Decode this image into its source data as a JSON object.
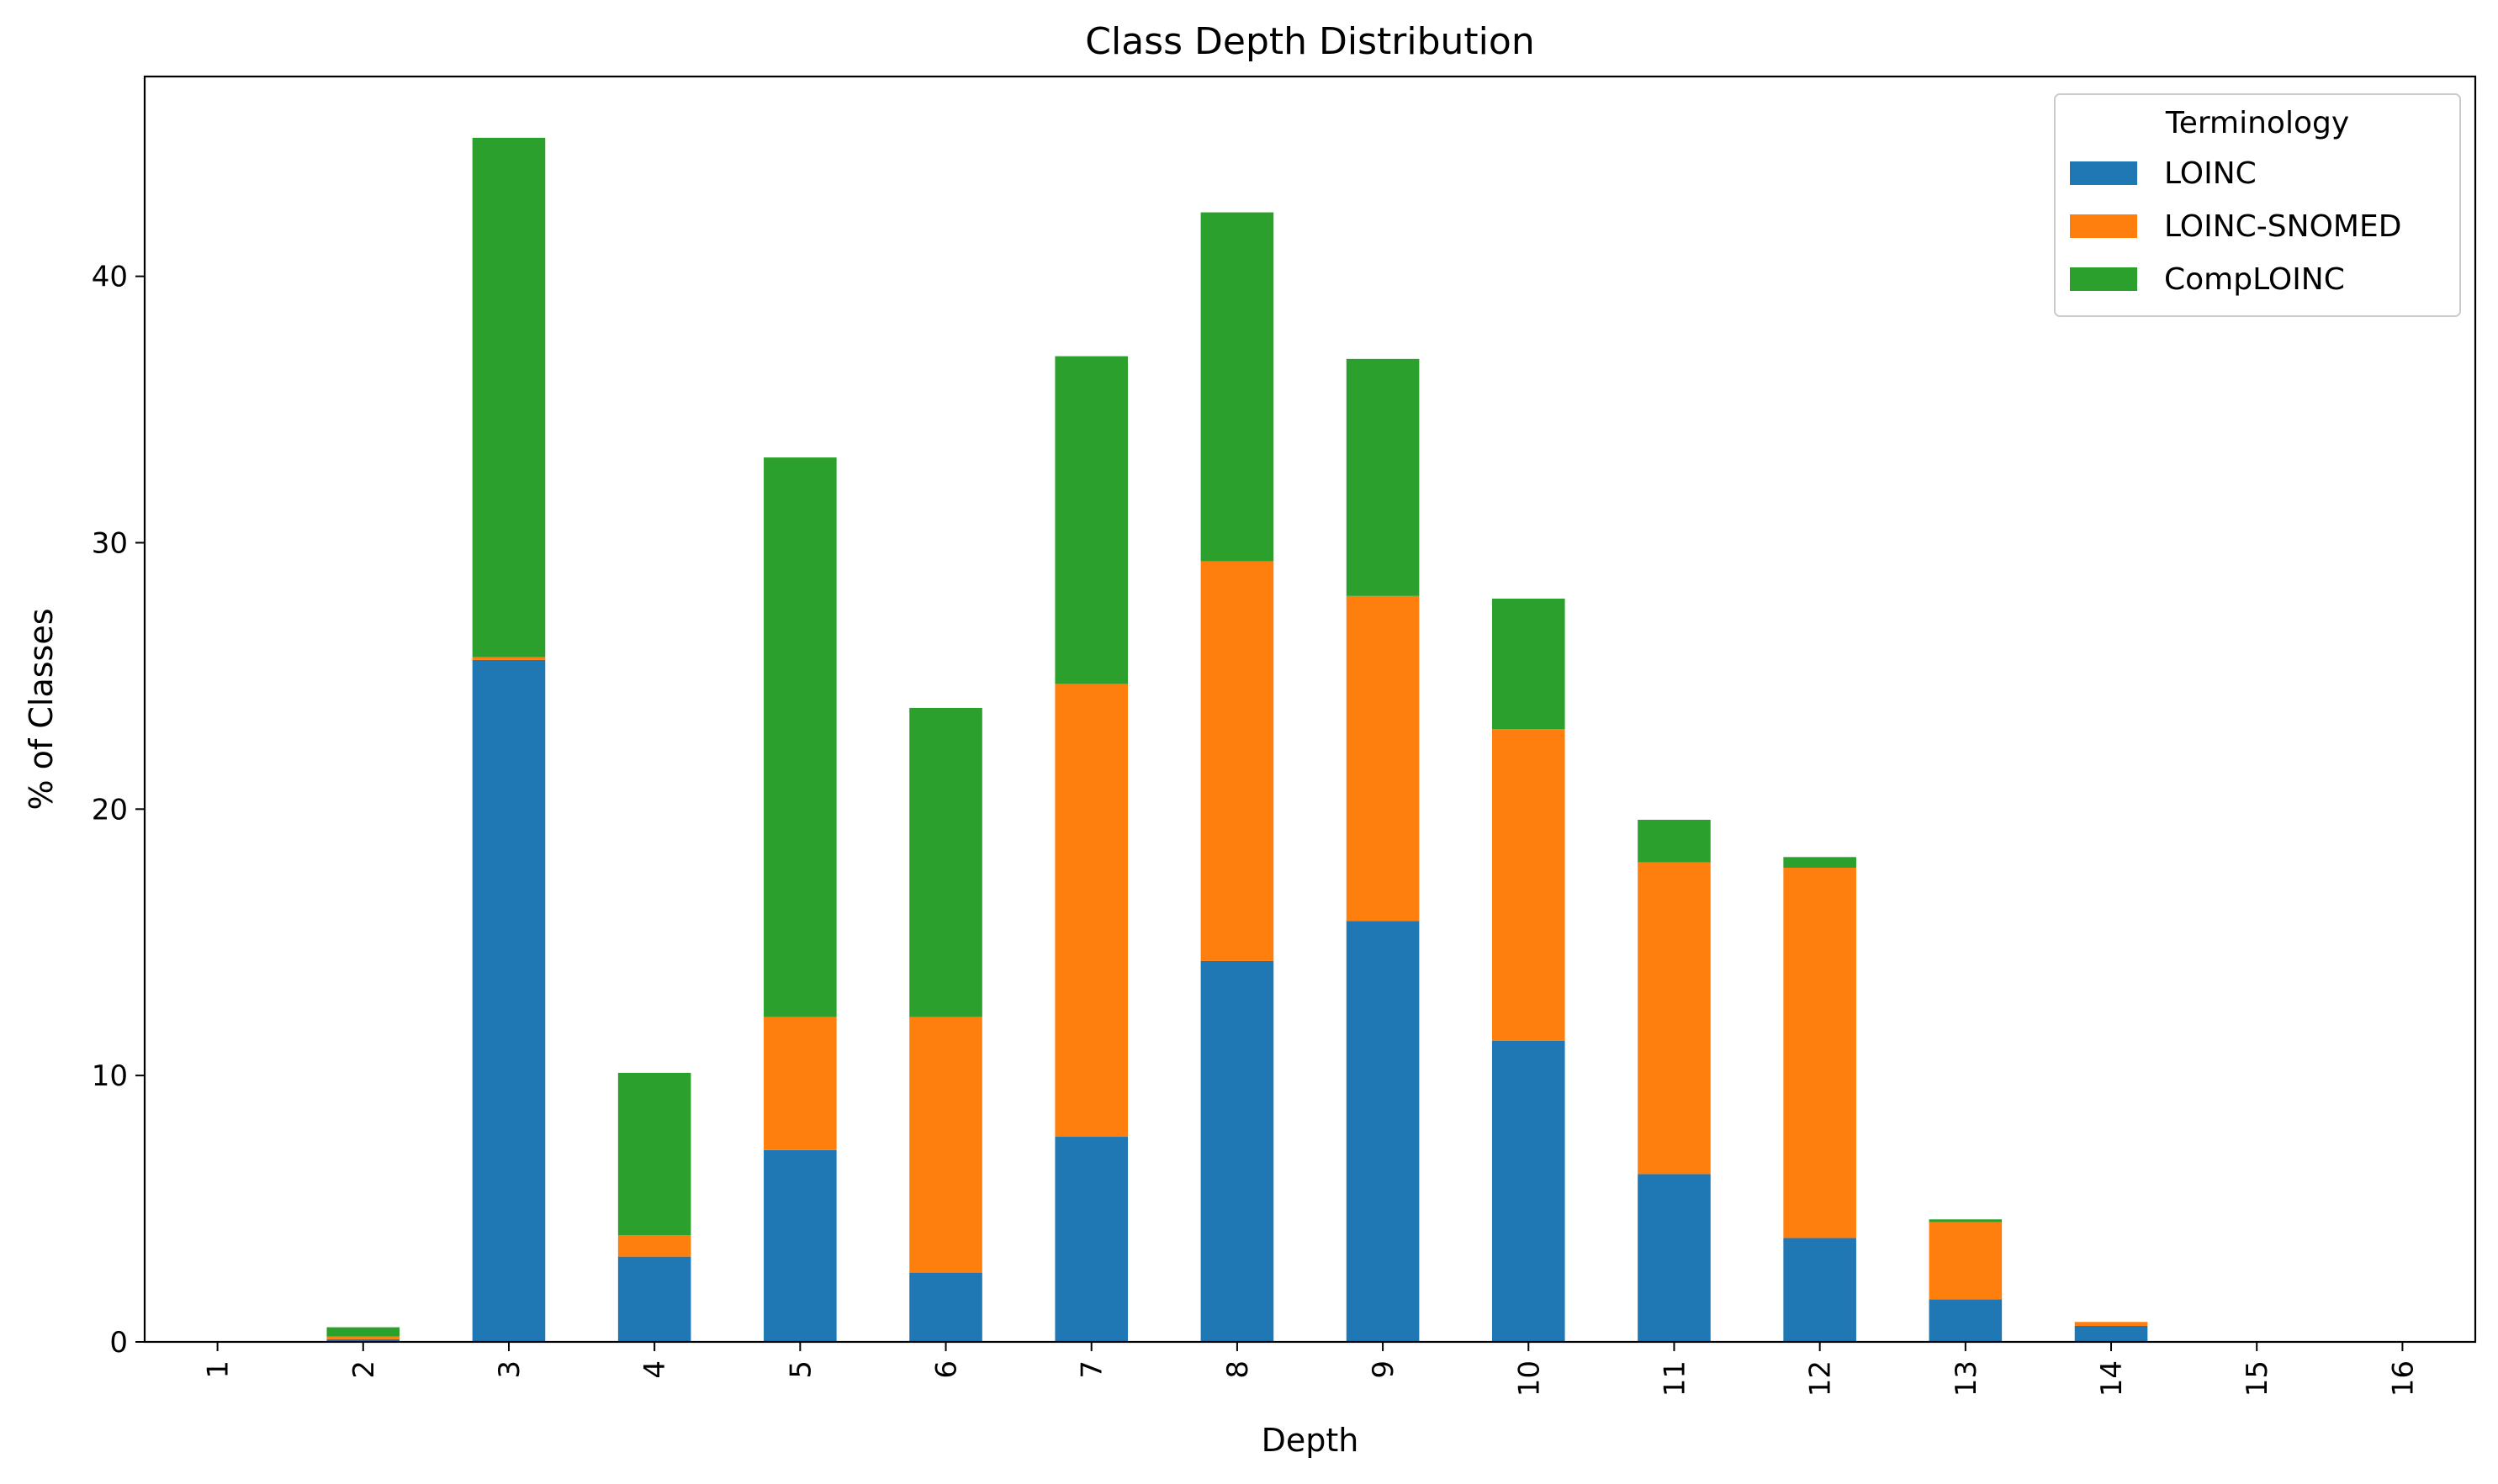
{
  "chart_data": {
    "type": "bar",
    "stacked": true,
    "title": "Class Depth Distribution",
    "xlabel": "Depth",
    "ylabel": "% of Classes",
    "categories": [
      "1",
      "2",
      "3",
      "4",
      "5",
      "6",
      "7",
      "8",
      "9",
      "10",
      "11",
      "12",
      "13",
      "14",
      "15",
      "16"
    ],
    "ylim": [
      0,
      47.5
    ],
    "yticks": [
      0,
      10,
      20,
      30,
      40
    ],
    "grid": false,
    "legend": {
      "title": "Terminology",
      "position": "top-right"
    },
    "series": [
      {
        "name": "LOINC",
        "color": "#1f77b4",
        "values": [
          0,
          0.1,
          25.6,
          3.2,
          7.2,
          2.6,
          7.7,
          14.3,
          15.8,
          11.3,
          6.3,
          3.9,
          1.6,
          0.6,
          0,
          0
        ]
      },
      {
        "name": "LOINC-SNOMED",
        "color": "#ff7f0e",
        "values": [
          0,
          0.1,
          0.1,
          0.8,
          5.0,
          9.6,
          17.0,
          15.0,
          12.2,
          11.7,
          11.7,
          13.9,
          2.9,
          0.15,
          0,
          0
        ]
      },
      {
        "name": "CompLOINC",
        "color": "#2ca02c",
        "values": [
          0,
          0.35,
          19.5,
          6.1,
          21.0,
          11.6,
          12.3,
          13.1,
          8.9,
          4.9,
          1.6,
          0.4,
          0.1,
          0,
          0,
          0
        ]
      }
    ]
  }
}
